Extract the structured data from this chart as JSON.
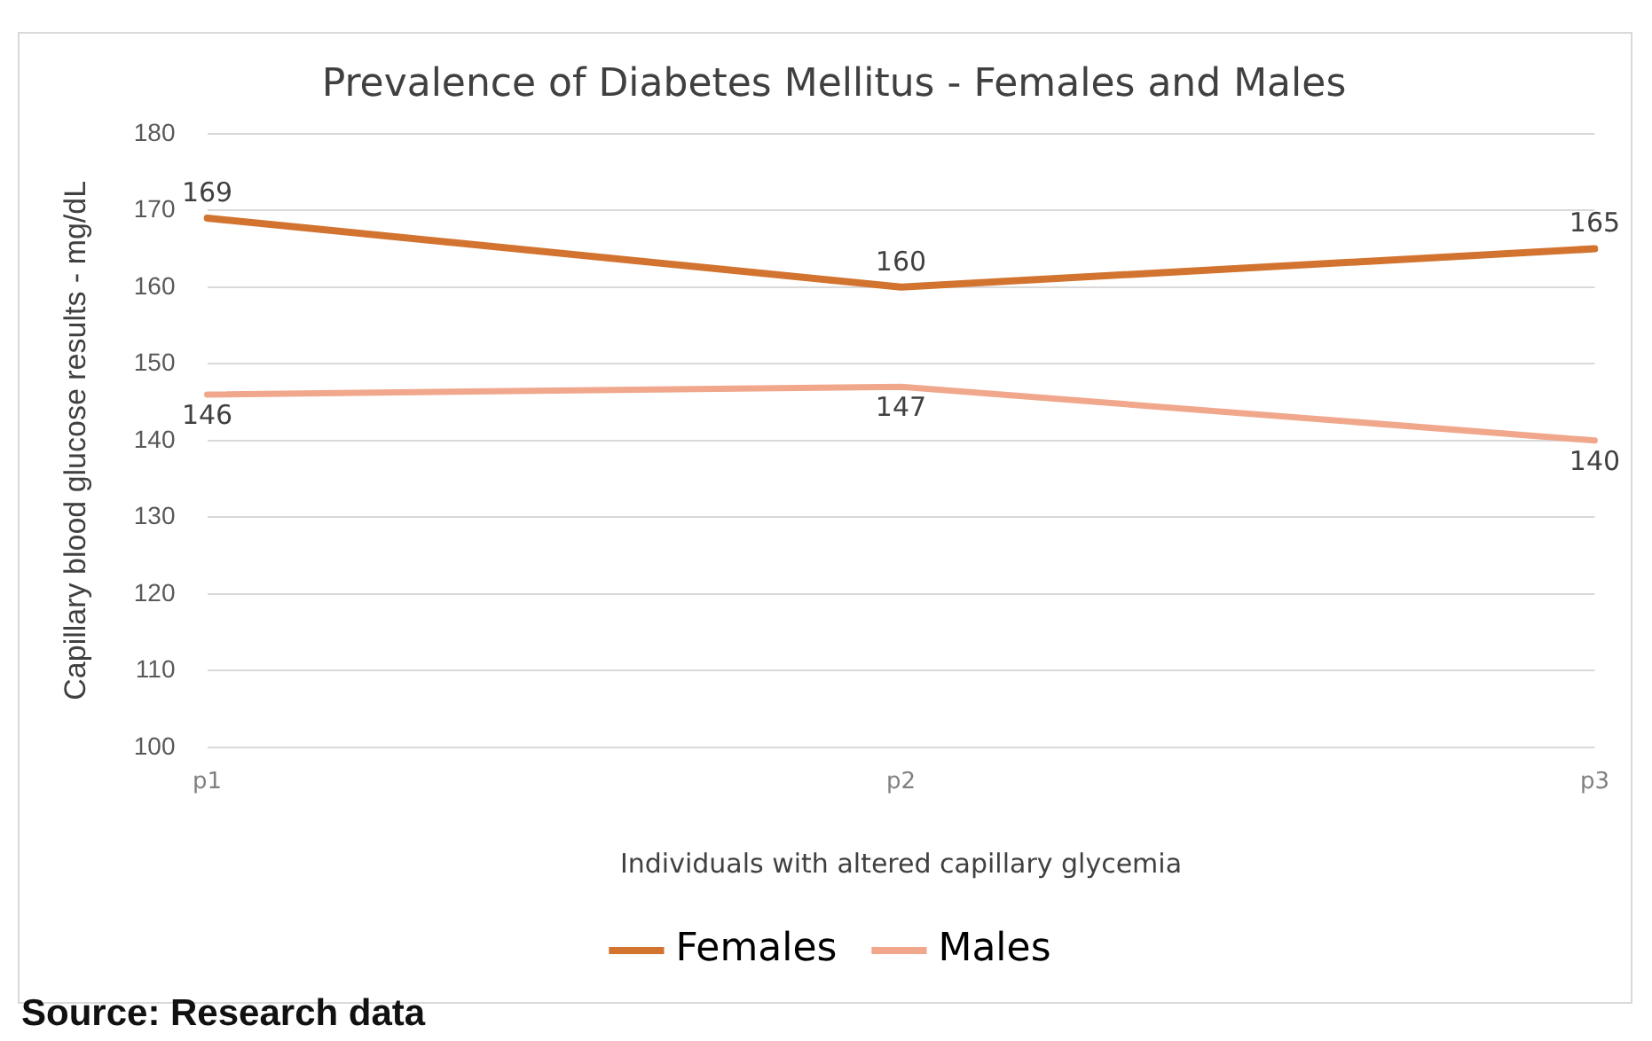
{
  "chart_data": {
    "type": "line",
    "title": "Prevalence of Diabetes Mellitus - Females and Males",
    "xlabel": "Individuals with altered capillary glycemia",
    "ylabel": "Capillary blood glucose results - mg/dL",
    "categories": [
      "p1",
      "p2",
      "p3"
    ],
    "series": [
      {
        "name": "Females",
        "color": "#d2732f",
        "values": [
          169,
          160,
          165
        ]
      },
      {
        "name": "Males",
        "color": "#f0a78c",
        "values": [
          146,
          147,
          140
        ]
      }
    ],
    "ylim": [
      100,
      180
    ],
    "yticks": [
      100,
      110,
      120,
      130,
      140,
      150,
      160,
      170,
      180
    ],
    "grid": "y",
    "legend": "bottom",
    "marker": "none",
    "line_style": "solid",
    "data_labels": true,
    "annotations": [
      "Source: Research data"
    ]
  }
}
